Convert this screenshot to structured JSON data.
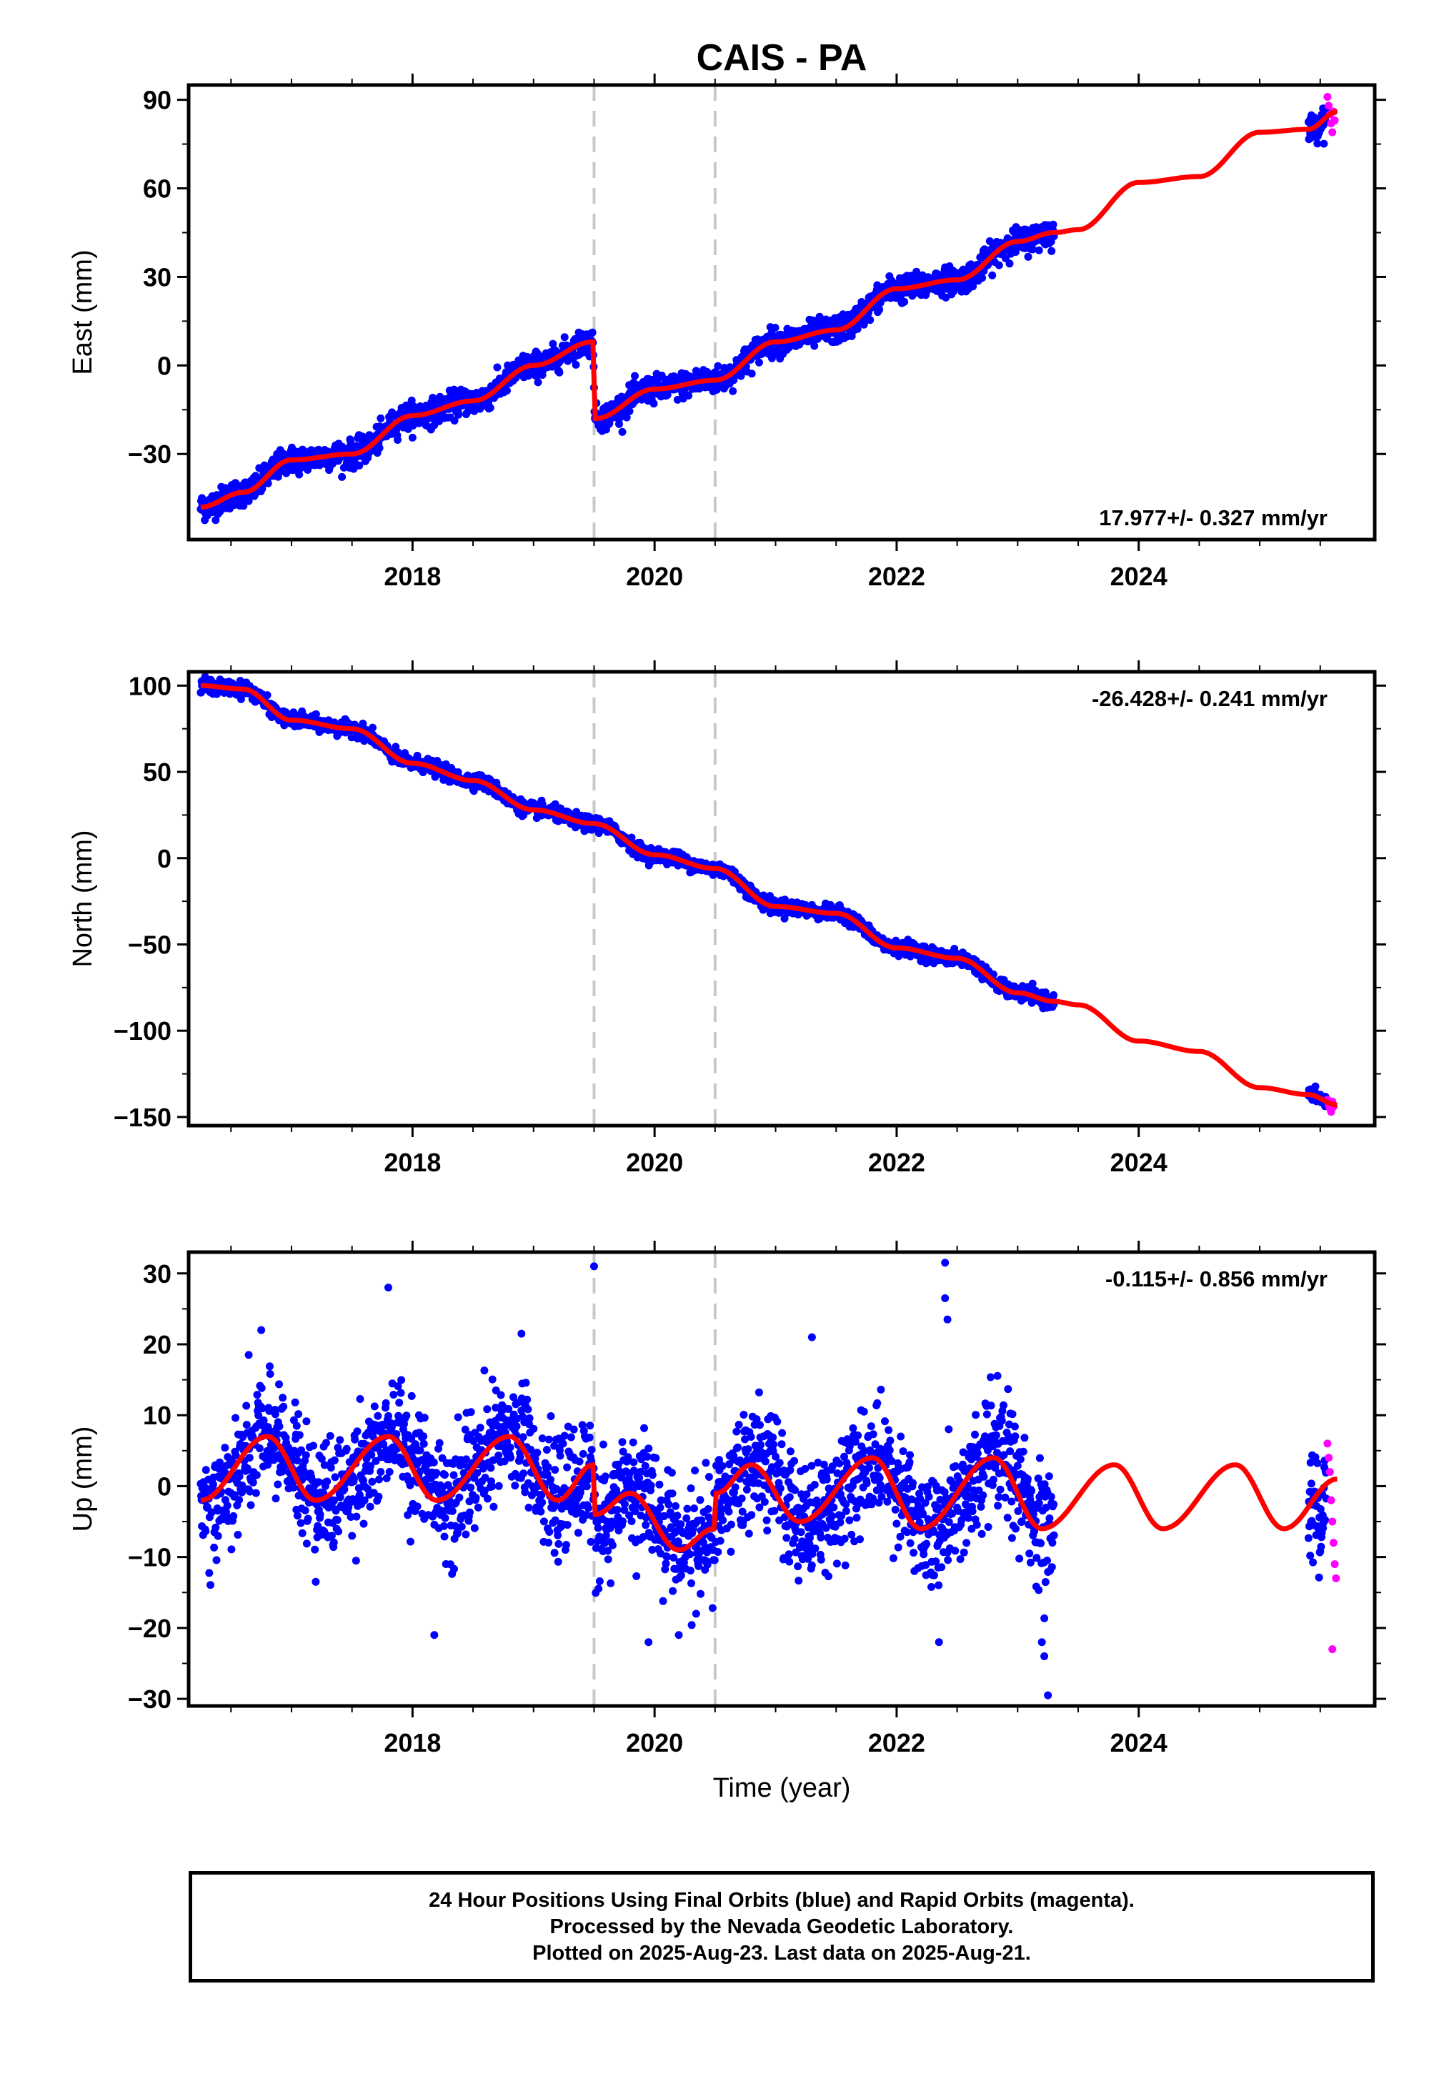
{
  "colors": {
    "final": "#0000ff",
    "rapid": "#ff00ff",
    "model": "#ff0000",
    "step": "#c8c8c8"
  },
  "chart_data": {
    "title": "CAIS - PA",
    "type": "scatter",
    "xlabel": "Time (year)",
    "xlim": [
      2016.15,
      2025.95
    ],
    "xticks": [
      2018,
      2020,
      2022,
      2024
    ],
    "x_minor_ticks": [
      2016.5,
      2017,
      2017.5,
      2018.5,
      2019,
      2019.5,
      2020.5,
      2021,
      2021.5,
      2022.5,
      2023,
      2023.5,
      2024.5,
      2025,
      2025.5
    ],
    "step_markers": [
      2019.5,
      2020.5
    ],
    "data_span": {
      "start": 2016.25,
      "gap_start": 2023.3,
      "gap_end": 2025.4,
      "rapid_start": 2025.55,
      "end": 2025.64
    },
    "legend": "none",
    "grid": false,
    "panels": [
      {
        "key": "east",
        "ylabel": "East (mm)",
        "ylim": [
          -59,
          95
        ],
        "yticks": [
          -30,
          0,
          30,
          60,
          90
        ],
        "rate_label": "17.977+/- 0.327 mm/yr",
        "rate_position": "bottom-right",
        "noise_mm": 2.2,
        "model_knots": [
          [
            2016.25,
            -48
          ],
          [
            2016.6,
            -43
          ],
          [
            2017.0,
            -32
          ],
          [
            2017.5,
            -30
          ],
          [
            2018.0,
            -17
          ],
          [
            2018.5,
            -12
          ],
          [
            2019.0,
            0
          ],
          [
            2019.49,
            8
          ],
          [
            2019.51,
            -18
          ],
          [
            2020.0,
            -8
          ],
          [
            2020.5,
            -5
          ],
          [
            2021.0,
            8
          ],
          [
            2021.5,
            12
          ],
          [
            2022.0,
            26
          ],
          [
            2022.5,
            29
          ],
          [
            2023.0,
            42
          ],
          [
            2023.3,
            45
          ],
          [
            2023.5,
            46
          ],
          [
            2024.0,
            62
          ],
          [
            2024.5,
            64
          ],
          [
            2025.0,
            79
          ],
          [
            2025.4,
            80
          ],
          [
            2025.64,
            86
          ]
        ],
        "series": [
          {
            "name": "Final Orbits (blue)",
            "note": "24 Hour Positions"
          },
          {
            "name": "Rapid Orbits (magenta)",
            "values": [
              [
                2025.56,
                91
              ],
              [
                2025.57,
                88
              ],
              [
                2025.58,
                85
              ],
              [
                2025.59,
                82
              ],
              [
                2025.6,
                79
              ],
              [
                2025.61,
                86
              ],
              [
                2025.62,
                83
              ]
            ]
          },
          {
            "name": "model"
          }
        ]
      },
      {
        "key": "north",
        "ylabel": "North (mm)",
        "ylim": [
          -155,
          108
        ],
        "yticks": [
          -150,
          -100,
          -50,
          0,
          50,
          100
        ],
        "rate_label": "-26.428+/- 0.241 mm/yr",
        "rate_position": "top-right",
        "noise_mm": 2.0,
        "model_knots": [
          [
            2016.25,
            100
          ],
          [
            2016.6,
            98
          ],
          [
            2017.0,
            80
          ],
          [
            2017.5,
            75
          ],
          [
            2018.0,
            55
          ],
          [
            2018.5,
            45
          ],
          [
            2019.0,
            28
          ],
          [
            2019.5,
            20
          ],
          [
            2020.0,
            2
          ],
          [
            2020.5,
            -6
          ],
          [
            2021.0,
            -28
          ],
          [
            2021.5,
            -32
          ],
          [
            2022.0,
            -52
          ],
          [
            2022.5,
            -58
          ],
          [
            2023.0,
            -78
          ],
          [
            2023.3,
            -83
          ],
          [
            2023.5,
            -85
          ],
          [
            2024.0,
            -106
          ],
          [
            2024.5,
            -112
          ],
          [
            2025.0,
            -133
          ],
          [
            2025.4,
            -137
          ],
          [
            2025.64,
            -143
          ]
        ],
        "series": [
          {
            "name": "Final Orbits (blue)"
          },
          {
            "name": "Rapid Orbits (magenta)",
            "values": [
              [
                2025.56,
                -140
              ],
              [
                2025.57,
                -143
              ],
              [
                2025.58,
                -145
              ],
              [
                2025.59,
                -147
              ],
              [
                2025.6,
                -141
              ],
              [
                2025.61,
                -144
              ]
            ]
          },
          {
            "name": "model"
          }
        ]
      },
      {
        "key": "up",
        "ylabel": "Up (mm)",
        "ylim": [
          -31,
          33
        ],
        "yticks": [
          -30,
          -20,
          -10,
          0,
          10,
          20,
          30
        ],
        "rate_label": "-0.115+/- 0.856 mm/yr",
        "rate_position": "top-right",
        "noise_mm": 4.0,
        "seasonal": {
          "amplitude_mm": 4.7,
          "phase_year": 2016.78,
          "offset_mm": 1.0
        },
        "model_knots": [
          [
            2016.25,
            -2
          ],
          [
            2016.8,
            7
          ],
          [
            2017.2,
            -2
          ],
          [
            2017.8,
            7
          ],
          [
            2018.2,
            -2
          ],
          [
            2018.8,
            7
          ],
          [
            2019.2,
            -2
          ],
          [
            2019.49,
            3
          ],
          [
            2019.51,
            -4
          ],
          [
            2019.8,
            -1
          ],
          [
            2020.2,
            -9
          ],
          [
            2020.49,
            -6
          ],
          [
            2020.51,
            -1
          ],
          [
            2020.8,
            3
          ],
          [
            2021.2,
            -5
          ],
          [
            2021.8,
            4
          ],
          [
            2022.2,
            -6
          ],
          [
            2022.8,
            4
          ],
          [
            2023.2,
            -6
          ],
          [
            2023.8,
            3
          ],
          [
            2024.2,
            -6
          ],
          [
            2024.8,
            3
          ],
          [
            2025.2,
            -6
          ],
          [
            2025.64,
            1
          ]
        ],
        "outliers": [
          [
            2017.8,
            28
          ],
          [
            2019.5,
            31
          ],
          [
            2022.4,
            31.5
          ],
          [
            2022.4,
            26.5
          ],
          [
            2022.42,
            23.5
          ],
          [
            2016.75,
            22
          ],
          [
            2018.9,
            21.5
          ],
          [
            2021.3,
            21
          ],
          [
            2018.18,
            -21
          ],
          [
            2019.95,
            -22
          ],
          [
            2020.2,
            -21
          ],
          [
            2022.35,
            -22
          ],
          [
            2023.2,
            -22
          ],
          [
            2023.22,
            -24
          ],
          [
            2023.25,
            -29.5
          ]
        ],
        "series": [
          {
            "name": "Final Orbits (blue)"
          },
          {
            "name": "Rapid Orbits (magenta)",
            "values": [
              [
                2025.56,
                6
              ],
              [
                2025.57,
                4
              ],
              [
                2025.58,
                2
              ],
              [
                2025.59,
                -2
              ],
              [
                2025.6,
                -5
              ],
              [
                2025.61,
                -8
              ],
              [
                2025.62,
                -11
              ],
              [
                2025.63,
                -13
              ],
              [
                2025.6,
                -23
              ]
            ]
          },
          {
            "name": "model"
          }
        ]
      }
    ]
  },
  "caption": {
    "line1": "24 Hour Positions Using Final Orbits (blue) and Rapid Orbits (magenta).",
    "line2": "Processed by the Nevada Geodetic Laboratory.",
    "line3": "Plotted on 2025-Aug-23. Last data on 2025-Aug-21."
  }
}
